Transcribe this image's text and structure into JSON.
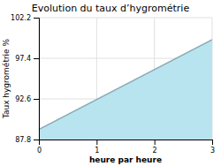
{
  "chart_data": {
    "type": "area",
    "title": "Evolution du taux d’hygrométrie",
    "xlabel": "heure par heure",
    "ylabel": "Taux hygrométrie %",
    "x": [
      0,
      3
    ],
    "values": [
      89.0,
      99.6
    ],
    "color": "#b8e4f0",
    "xlim": [
      0,
      3
    ],
    "ylim": [
      87.8,
      102.2
    ],
    "xticks": [
      0,
      1,
      2,
      3
    ],
    "yticks": [
      87.8,
      92.6,
      97.4,
      102.2
    ],
    "grid": true
  }
}
